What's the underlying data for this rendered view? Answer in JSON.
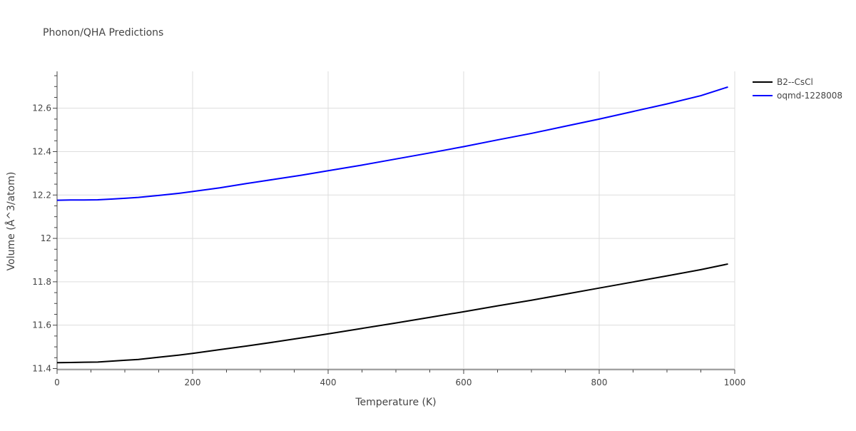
{
  "chart_data": {
    "type": "line",
    "title": "Phonon/QHA Predictions",
    "xlabel": "Temperature (K)",
    "ylabel": "Volume (Å^3/atom)",
    "xlim": [
      0,
      1000
    ],
    "ylim": [
      11.395,
      12.77
    ],
    "xticks": [
      0,
      200,
      400,
      600,
      800,
      1000
    ],
    "xtick_labels": [
      "0",
      "200",
      "400",
      "600",
      "800",
      "1000"
    ],
    "yticks": [
      11.4,
      11.6,
      11.8,
      12,
      12.2,
      12.4,
      12.6
    ],
    "ytick_labels": [
      "11.4",
      "11.6",
      "11.8",
      "12",
      "12.2",
      "12.4",
      "12.6"
    ],
    "grid": true,
    "legend_position": "top-right",
    "series": [
      {
        "name": "B2--CsCl",
        "color": "#000000",
        "x": [
          0,
          20,
          40,
          60,
          80,
          100,
          120,
          150,
          180,
          200,
          240,
          280,
          320,
          360,
          400,
          450,
          500,
          550,
          600,
          650,
          700,
          750,
          800,
          850,
          900,
          950,
          990
        ],
        "y": [
          11.427,
          11.428,
          11.429,
          11.43,
          11.434,
          11.438,
          11.442,
          11.452,
          11.462,
          11.47,
          11.487,
          11.504,
          11.522,
          11.541,
          11.56,
          11.585,
          11.61,
          11.636,
          11.662,
          11.689,
          11.715,
          11.743,
          11.771,
          11.799,
          11.827,
          11.856,
          11.882
        ]
      },
      {
        "name": "oqmd-1228008",
        "color": "#0000ff",
        "x": [
          0,
          20,
          40,
          60,
          80,
          100,
          120,
          150,
          180,
          200,
          240,
          280,
          320,
          360,
          400,
          450,
          500,
          550,
          600,
          650,
          700,
          750,
          800,
          850,
          900,
          950,
          990
        ],
        "y": [
          12.176,
          12.177,
          12.177,
          12.178,
          12.181,
          12.185,
          12.189,
          12.198,
          12.208,
          12.216,
          12.233,
          12.253,
          12.272,
          12.291,
          12.312,
          12.338,
          12.366,
          12.394,
          12.423,
          12.454,
          12.484,
          12.517,
          12.55,
          12.585,
          12.62,
          12.658,
          12.698
        ]
      }
    ]
  }
}
